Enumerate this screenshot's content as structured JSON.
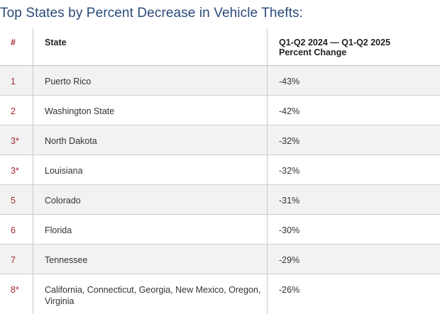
{
  "title": "Top States by Percent Decrease in Vehicle Thefts:",
  "table": {
    "headers": {
      "rank": "#",
      "state": "State",
      "change": "Q1-Q2 2024 — Q1-Q2 2025 Percent Change"
    },
    "rows": [
      {
        "rank": "1",
        "state": "Puerto Rico",
        "change": "-43%"
      },
      {
        "rank": "2",
        "state": "Washington State",
        "change": "-42%"
      },
      {
        "rank": "3*",
        "state": "North Dakota",
        "change": "-32%"
      },
      {
        "rank": "3*",
        "state": "Louisiana",
        "change": "-32%"
      },
      {
        "rank": "5",
        "state": "Colorado",
        "change": "-31%"
      },
      {
        "rank": "6",
        "state": "Florida",
        "change": "-30%"
      },
      {
        "rank": "7",
        "state": "Tennessee",
        "change": "-29%"
      },
      {
        "rank": "8*",
        "state": "California, Connecticut, Georgia, New Mexico, Oregon, Virginia",
        "change": "-26%"
      }
    ]
  }
}
